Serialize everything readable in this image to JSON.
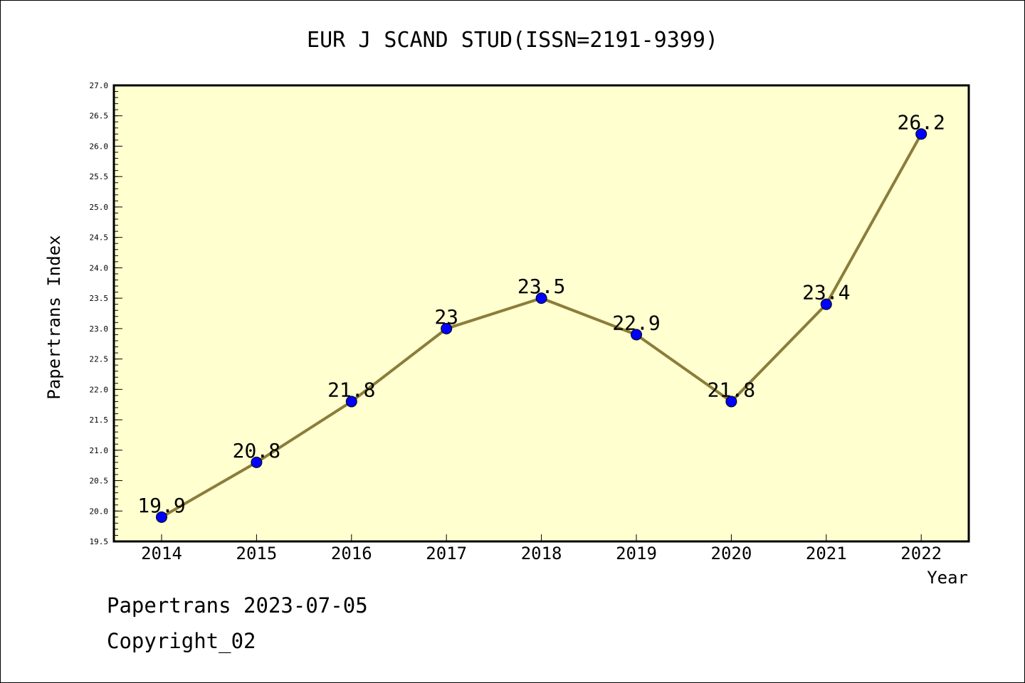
{
  "chart_data": {
    "type": "line",
    "title": "EUR J SCAND STUD(ISSN=2191-9399)",
    "xlabel": "Year",
    "ylabel": "Papertrans Index",
    "categories": [
      "2014",
      "2015",
      "2016",
      "2017",
      "2018",
      "2019",
      "2020",
      "2021",
      "2022"
    ],
    "series": [
      {
        "values": [
          19.9,
          20.8,
          21.8,
          23.0,
          23.5,
          22.9,
          21.8,
          23.4,
          26.2
        ],
        "labels": [
          "19.9",
          "20.8",
          "21.8",
          "23",
          "23.5",
          "22.9",
          "21.8",
          "23.4",
          "26.2"
        ]
      }
    ],
    "ylim": [
      19.5,
      27.0
    ],
    "yticks": [
      "19.5",
      "20.0",
      "20.5",
      "21.0",
      "21.5",
      "22.0",
      "22.5",
      "23.0",
      "23.5",
      "24.0",
      "24.5",
      "25.0",
      "25.5",
      "26.0",
      "26.5",
      "27.0"
    ],
    "grid": false,
    "legend": "none",
    "colors": {
      "plot_background": "#ffffd0",
      "line": "#8b7d3a",
      "marker": "#0000ff"
    }
  },
  "footer": {
    "date_text": "Papertrans 2023-07-05",
    "copyright_text": "Copyright_02"
  }
}
